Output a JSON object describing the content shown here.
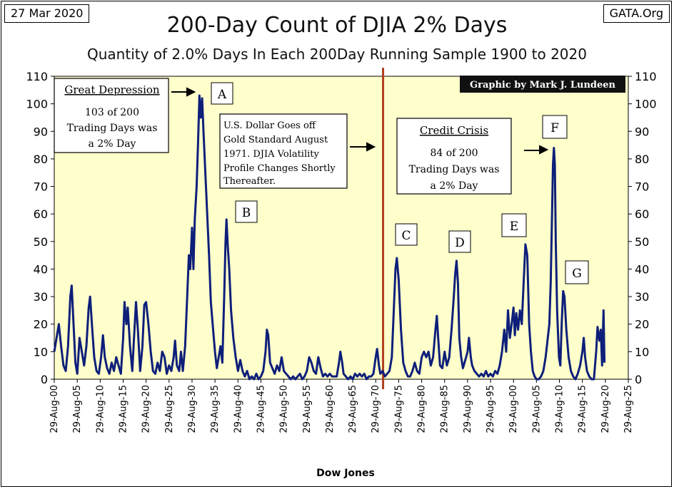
{
  "header": {
    "date": "27 Mar 2020",
    "source": "GATA.Org",
    "title": "200-Day Count of  DJIA 2% Days",
    "subtitle": "Quantity of 2.0% Days In Each 200Day Running Sample 1900 to 2020",
    "credit": "Graphic by Mark J. Lundeen"
  },
  "annotations": {
    "great_depression": {
      "heading": "Great Depression",
      "lines": [
        "103 of 200",
        "Trading Days was",
        "a 2% Day"
      ]
    },
    "gold_standard": {
      "lines": [
        "U.S. Dollar Goes off",
        "Gold Standard August",
        "1971.  DJIA Volatility",
        "Profile Changes Shortly",
        "Thereafter."
      ]
    },
    "credit_crisis": {
      "heading": "Credit Crisis",
      "lines": [
        "84 of 200",
        "Trading Days was",
        "a 2% Day"
      ]
    },
    "letters": [
      "A",
      "B",
      "C",
      "D",
      "E",
      "F",
      "G"
    ]
  },
  "colors": {
    "plot_background": "#ffffcc",
    "series_line": "#0e1f7a",
    "marker_line": "#b2401f",
    "credit_box": "#111111"
  },
  "chart_data": {
    "type": "line",
    "xlabel": "Dow Jones",
    "ylabel": "",
    "ylim": [
      0,
      110
    ],
    "y_ticks": [
      0,
      10,
      20,
      30,
      40,
      50,
      60,
      70,
      80,
      90,
      100,
      110
    ],
    "x_range_years": [
      1900,
      2025
    ],
    "x_tick_labels": [
      "29-Aug-00",
      "29-Aug-05",
      "29-Aug-10",
      "29-Aug-15",
      "29-Aug-20",
      "29-Aug-25",
      "29-Aug-30",
      "29-Aug-35",
      "29-Aug-40",
      "29-Aug-45",
      "29-Aug-50",
      "29-Aug-55",
      "29-Aug-60",
      "29-Aug-65",
      "29-Aug-70",
      "29-Aug-75",
      "29-Aug-80",
      "29-Aug-85",
      "29-Aug-90",
      "29-Aug-95",
      "29-Aug-00",
      "29-Aug-05",
      "29-Aug-10",
      "29-Aug-15",
      "29-Aug-20",
      "29-Aug-25"
    ],
    "vertical_marker_year": 1971.6,
    "grid": false,
    "series": [
      {
        "points": [
          [
            1900.0,
            10
          ],
          [
            1900.5,
            15
          ],
          [
            1901.0,
            20
          ],
          [
            1901.5,
            12
          ],
          [
            1902.0,
            5
          ],
          [
            1902.5,
            3
          ],
          [
            1903.0,
            12
          ],
          [
            1903.5,
            30
          ],
          [
            1903.8,
            34
          ],
          [
            1904.2,
            20
          ],
          [
            1904.6,
            6
          ],
          [
            1905.0,
            2
          ],
          [
            1905.5,
            15
          ],
          [
            1906.0,
            10
          ],
          [
            1906.5,
            5
          ],
          [
            1907.0,
            12
          ],
          [
            1907.5,
            26
          ],
          [
            1907.8,
            30
          ],
          [
            1908.2,
            20
          ],
          [
            1908.7,
            8
          ],
          [
            1909.2,
            3
          ],
          [
            1909.7,
            2
          ],
          [
            1910.2,
            8
          ],
          [
            1910.6,
            16
          ],
          [
            1911.0,
            8
          ],
          [
            1911.5,
            4
          ],
          [
            1912.0,
            2
          ],
          [
            1912.5,
            6
          ],
          [
            1913.0,
            3
          ],
          [
            1913.5,
            8
          ],
          [
            1914.0,
            5
          ],
          [
            1914.5,
            2
          ],
          [
            1915.0,
            15
          ],
          [
            1915.3,
            28
          ],
          [
            1915.7,
            20
          ],
          [
            1916.0,
            26
          ],
          [
            1916.5,
            12
          ],
          [
            1917.0,
            3
          ],
          [
            1917.4,
            16
          ],
          [
            1917.8,
            28
          ],
          [
            1918.2,
            18
          ],
          [
            1918.7,
            3
          ],
          [
            1919.2,
            12
          ],
          [
            1919.6,
            27
          ],
          [
            1920.0,
            28
          ],
          [
            1920.5,
            20
          ],
          [
            1921.0,
            10
          ],
          [
            1921.5,
            3
          ],
          [
            1922.0,
            2
          ],
          [
            1922.5,
            6
          ],
          [
            1923.0,
            3
          ],
          [
            1923.5,
            10
          ],
          [
            1924.0,
            8
          ],
          [
            1924.5,
            2
          ],
          [
            1925.0,
            5
          ],
          [
            1925.5,
            3
          ],
          [
            1926.0,
            8
          ],
          [
            1926.3,
            14
          ],
          [
            1926.7,
            5
          ],
          [
            1927.2,
            3
          ],
          [
            1927.6,
            10
          ],
          [
            1928.0,
            3
          ],
          [
            1928.5,
            12
          ],
          [
            1929.0,
            32
          ],
          [
            1929.3,
            45
          ],
          [
            1929.6,
            40
          ],
          [
            1930.0,
            55
          ],
          [
            1930.3,
            40
          ],
          [
            1930.6,
            58
          ],
          [
            1931.0,
            70
          ],
          [
            1931.3,
            85
          ],
          [
            1931.6,
            103
          ],
          [
            1931.9,
            95
          ],
          [
            1932.2,
            102
          ],
          [
            1932.5,
            90
          ],
          [
            1932.9,
            75
          ],
          [
            1933.3,
            60
          ],
          [
            1933.7,
            45
          ],
          [
            1934.1,
            28
          ],
          [
            1934.6,
            18
          ],
          [
            1935.0,
            10
          ],
          [
            1935.4,
            4
          ],
          [
            1935.8,
            8
          ],
          [
            1936.2,
            12
          ],
          [
            1936.6,
            6
          ],
          [
            1937.0,
            30
          ],
          [
            1937.3,
            50
          ],
          [
            1937.5,
            58
          ],
          [
            1937.8,
            48
          ],
          [
            1938.1,
            40
          ],
          [
            1938.5,
            25
          ],
          [
            1939.0,
            15
          ],
          [
            1939.5,
            8
          ],
          [
            1940.0,
            3
          ],
          [
            1940.5,
            7
          ],
          [
            1941.0,
            3
          ],
          [
            1941.5,
            1
          ],
          [
            1942.0,
            3
          ],
          [
            1942.5,
            0
          ],
          [
            1943.0,
            1
          ],
          [
            1943.5,
            0
          ],
          [
            1944.0,
            2
          ],
          [
            1944.5,
            0
          ],
          [
            1945.0,
            1
          ],
          [
            1945.5,
            3
          ],
          [
            1946.0,
            10
          ],
          [
            1946.3,
            18
          ],
          [
            1946.6,
            16
          ],
          [
            1947.0,
            6
          ],
          [
            1947.5,
            4
          ],
          [
            1948.0,
            2
          ],
          [
            1948.5,
            5
          ],
          [
            1949.0,
            3
          ],
          [
            1949.5,
            8
          ],
          [
            1950.0,
            3
          ],
          [
            1950.5,
            2
          ],
          [
            1951.0,
            1
          ],
          [
            1951.5,
            0
          ],
          [
            1952.0,
            1
          ],
          [
            1952.5,
            0
          ],
          [
            1953.0,
            1
          ],
          [
            1953.5,
            2
          ],
          [
            1954.0,
            0
          ],
          [
            1954.5,
            1
          ],
          [
            1955.0,
            3
          ],
          [
            1955.5,
            8
          ],
          [
            1956.0,
            6
          ],
          [
            1956.5,
            3
          ],
          [
            1957.0,
            2
          ],
          [
            1957.5,
            8
          ],
          [
            1958.0,
            4
          ],
          [
            1958.5,
            1
          ],
          [
            1959.0,
            2
          ],
          [
            1959.5,
            1
          ],
          [
            1960.0,
            2
          ],
          [
            1960.5,
            1
          ],
          [
            1961.0,
            1
          ],
          [
            1961.5,
            1
          ],
          [
            1962.0,
            6
          ],
          [
            1962.3,
            10
          ],
          [
            1962.7,
            6
          ],
          [
            1963.0,
            2
          ],
          [
            1963.5,
            1
          ],
          [
            1964.0,
            0
          ],
          [
            1964.5,
            1
          ],
          [
            1965.0,
            0
          ],
          [
            1965.5,
            2
          ],
          [
            1966.0,
            1
          ],
          [
            1966.5,
            2
          ],
          [
            1967.0,
            1
          ],
          [
            1967.5,
            2
          ],
          [
            1968.0,
            0
          ],
          [
            1968.5,
            1
          ],
          [
            1969.0,
            1
          ],
          [
            1969.5,
            2
          ],
          [
            1970.0,
            8
          ],
          [
            1970.3,
            11
          ],
          [
            1970.7,
            5
          ],
          [
            1971.0,
            2
          ],
          [
            1971.5,
            3
          ],
          [
            1972.0,
            1
          ],
          [
            1972.5,
            2
          ],
          [
            1973.0,
            3
          ],
          [
            1973.5,
            8
          ],
          [
            1974.0,
            28
          ],
          [
            1974.3,
            40
          ],
          [
            1974.6,
            44
          ],
          [
            1975.0,
            36
          ],
          [
            1975.5,
            18
          ],
          [
            1976.0,
            6
          ],
          [
            1976.5,
            3
          ],
          [
            1977.0,
            1
          ],
          [
            1977.5,
            1
          ],
          [
            1978.0,
            3
          ],
          [
            1978.5,
            6
          ],
          [
            1979.0,
            3
          ],
          [
            1979.5,
            2
          ],
          [
            1980.0,
            8
          ],
          [
            1980.5,
            10
          ],
          [
            1981.0,
            8
          ],
          [
            1981.5,
            10
          ],
          [
            1982.0,
            5
          ],
          [
            1982.5,
            8
          ],
          [
            1983.0,
            18
          ],
          [
            1983.3,
            23
          ],
          [
            1983.6,
            15
          ],
          [
            1984.0,
            5
          ],
          [
            1984.5,
            4
          ],
          [
            1985.0,
            10
          ],
          [
            1985.5,
            5
          ],
          [
            1986.0,
            8
          ],
          [
            1986.5,
            18
          ],
          [
            1987.0,
            30
          ],
          [
            1987.3,
            38
          ],
          [
            1987.6,
            43
          ],
          [
            1987.9,
            35
          ],
          [
            1988.2,
            15
          ],
          [
            1988.6,
            8
          ],
          [
            1989.0,
            4
          ],
          [
            1989.5,
            7
          ],
          [
            1990.0,
            10
          ],
          [
            1990.3,
            15
          ],
          [
            1990.7,
            8
          ],
          [
            1991.0,
            5
          ],
          [
            1991.5,
            3
          ],
          [
            1992.0,
            2
          ],
          [
            1992.5,
            1
          ],
          [
            1993.0,
            2
          ],
          [
            1993.5,
            1
          ],
          [
            1994.0,
            3
          ],
          [
            1994.5,
            1
          ],
          [
            1995.0,
            2
          ],
          [
            1995.5,
            1
          ],
          [
            1996.0,
            3
          ],
          [
            1996.5,
            2
          ],
          [
            1997.0,
            5
          ],
          [
            1997.5,
            10
          ],
          [
            1998.0,
            18
          ],
          [
            1998.4,
            10
          ],
          [
            1998.8,
            25
          ],
          [
            1999.2,
            15
          ],
          [
            1999.6,
            20
          ],
          [
            2000.0,
            26
          ],
          [
            2000.3,
            16
          ],
          [
            2000.6,
            24
          ],
          [
            2001.0,
            18
          ],
          [
            2001.4,
            25
          ],
          [
            2001.8,
            20
          ],
          [
            2002.2,
            35
          ],
          [
            2002.6,
            49
          ],
          [
            2003.0,
            45
          ],
          [
            2003.4,
            20
          ],
          [
            2003.8,
            10
          ],
          [
            2004.2,
            3
          ],
          [
            2004.6,
            1
          ],
          [
            2005.0,
            0
          ],
          [
            2005.5,
            0
          ],
          [
            2006.0,
            1
          ],
          [
            2006.5,
            3
          ],
          [
            2007.0,
            8
          ],
          [
            2007.4,
            14
          ],
          [
            2007.8,
            20
          ],
          [
            2008.1,
            35
          ],
          [
            2008.4,
            60
          ],
          [
            2008.6,
            78
          ],
          [
            2008.8,
            84
          ],
          [
            2009.0,
            78
          ],
          [
            2009.2,
            50
          ],
          [
            2009.5,
            25
          ],
          [
            2009.9,
            8
          ],
          [
            2010.2,
            5
          ],
          [
            2010.5,
            20
          ],
          [
            2010.8,
            32
          ],
          [
            2011.1,
            30
          ],
          [
            2011.5,
            18
          ],
          [
            2012.0,
            8
          ],
          [
            2012.5,
            3
          ],
          [
            2013.0,
            1
          ],
          [
            2013.5,
            0
          ],
          [
            2014.0,
            2
          ],
          [
            2014.5,
            5
          ],
          [
            2015.0,
            10
          ],
          [
            2015.3,
            15
          ],
          [
            2015.6,
            8
          ],
          [
            2016.0,
            3
          ],
          [
            2016.5,
            1
          ],
          [
            2017.0,
            0
          ],
          [
            2017.5,
            0
          ],
          [
            2018.0,
            10
          ],
          [
            2018.3,
            19
          ],
          [
            2018.7,
            14
          ],
          [
            2019.0,
            18
          ],
          [
            2019.3,
            5
          ],
          [
            2019.6,
            25
          ],
          [
            2019.8,
            6
          ]
        ]
      }
    ]
  }
}
